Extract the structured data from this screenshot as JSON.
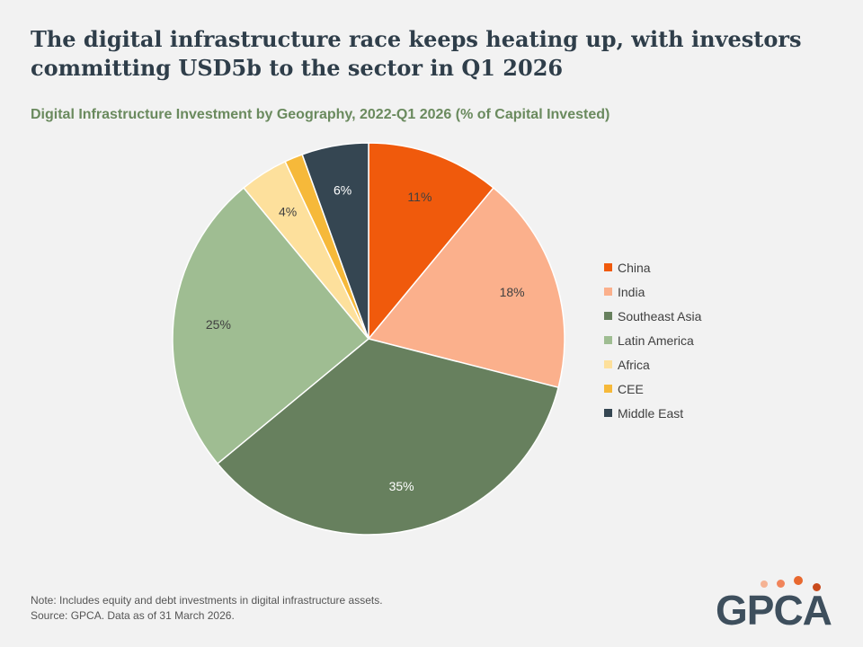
{
  "headline": "The digital infrastructure race keeps heating up, with investors committing USD5b to the sector in Q1 2026",
  "chart_data": {
    "type": "pie",
    "title": "Digital Infrastructure Investment by Geography, 2022-Q1 2026 (% of Capital Invested)",
    "legend_position": "right",
    "slices": [
      {
        "label": "China",
        "value": 11,
        "display": "11%",
        "color": "#f05a0c"
      },
      {
        "label": "India",
        "value": 18,
        "display": "18%",
        "color": "#fbb08c"
      },
      {
        "label": "Southeast Asia",
        "value": 35,
        "display": "35%",
        "color": "#67805e"
      },
      {
        "label": "Latin America",
        "value": 25,
        "display": "25%",
        "color": "#9fbd92"
      },
      {
        "label": "Africa",
        "value": 4,
        "display": "4%",
        "color": "#fde09c"
      },
      {
        "label": "CEE",
        "value": 1.5,
        "display": "",
        "color": "#f6b93a"
      },
      {
        "label": "Middle East",
        "value": 5.5,
        "display": "6%",
        "color": "#354652"
      }
    ]
  },
  "footnotes": {
    "note": "Note: Includes equity and debt investments in digital infrastructure assets.",
    "source": "Source: GPCA. Data as of 31 March 2026."
  },
  "logo": {
    "text": "GPCA",
    "dot_colors": [
      "#f5b394",
      "#f1845a",
      "#e8682e",
      "#c94a1c"
    ]
  }
}
